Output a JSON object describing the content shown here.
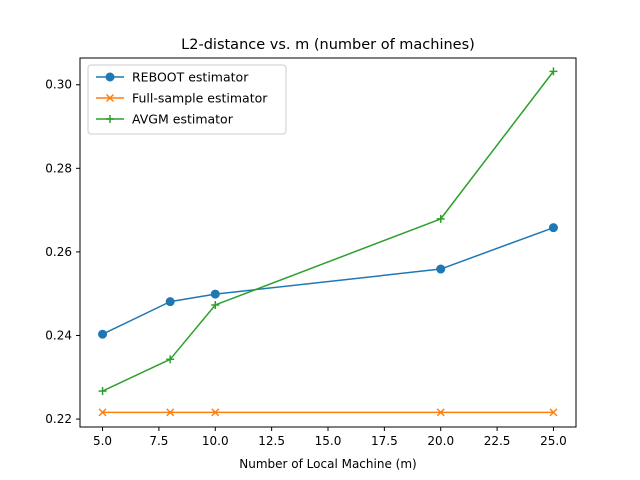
{
  "chart_data": {
    "type": "line",
    "title": "L2-distance vs. m (number of machines)",
    "xlabel": "Number of Local Machine (m)",
    "ylabel": "",
    "xlim": [
      4.0,
      26.0
    ],
    "ylim": [
      0.2181,
      0.3064
    ],
    "xticks": [
      5.0,
      7.5,
      10.0,
      12.5,
      15.0,
      17.5,
      20.0,
      22.5,
      25.0
    ],
    "xtick_labels": [
      "5.0",
      "7.5",
      "10.0",
      "12.5",
      "15.0",
      "17.5",
      "20.0",
      "22.5",
      "25.0"
    ],
    "yticks": [
      0.22,
      0.24,
      0.26,
      0.28,
      0.3
    ],
    "ytick_labels": [
      "0.22",
      "0.24",
      "0.26",
      "0.28",
      "0.30"
    ],
    "grid": false,
    "legend_position": "top-left",
    "series": [
      {
        "name": "REBOOT estimator",
        "color": "#1f77b4",
        "marker": "circle",
        "x": [
          5,
          8,
          10,
          20,
          25
        ],
        "y": [
          0.2403,
          0.2481,
          0.2499,
          0.2559,
          0.2658
        ]
      },
      {
        "name": "Full-sample estimator",
        "color": "#ff7f0e",
        "marker": "x",
        "x": [
          5,
          8,
          10,
          20,
          25
        ],
        "y": [
          0.2216,
          0.2216,
          0.2216,
          0.2216,
          0.2216
        ]
      },
      {
        "name": "AVGM estimator",
        "color": "#2ca02c",
        "marker": "plus",
        "x": [
          5,
          8,
          10,
          20,
          25
        ],
        "y": [
          0.2267,
          0.2343,
          0.2473,
          0.2679,
          0.3032
        ]
      }
    ]
  }
}
